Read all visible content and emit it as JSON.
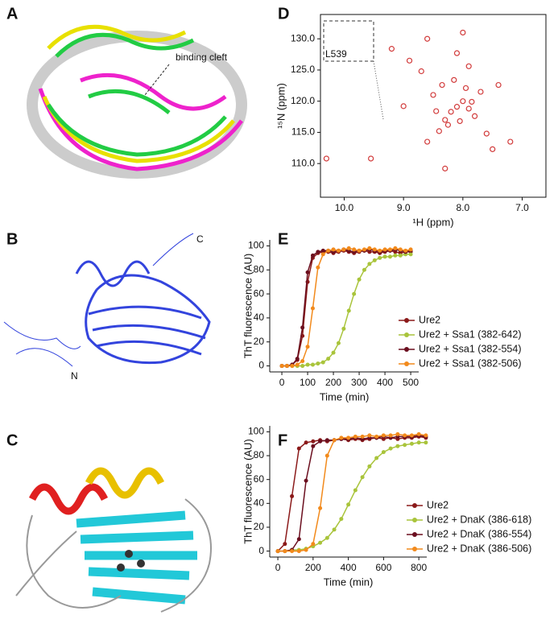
{
  "panel_labels": [
    "A",
    "B",
    "C",
    "D",
    "E",
    "F"
  ],
  "annotations": {
    "binding_cleft": "binding cleft",
    "c_terminus": "C",
    "n_terminus": "N"
  },
  "chart_data": [
    {
      "type": "scatter",
      "xlabel": "¹H (ppm)",
      "ylabel": "¹⁵N (ppm)",
      "annotation": "L539",
      "xlim": [
        10.4,
        6.6
      ],
      "ylim": [
        104.6,
        133.9
      ],
      "xticks": [
        {
          "value": 10,
          "label": "10.0"
        },
        {
          "value": 9,
          "label": "9.0"
        },
        {
          "value": 8,
          "label": "8.0"
        },
        {
          "value": 7,
          "label": "7.0"
        }
      ],
      "yticks": [
        {
          "value": 110,
          "label": "110.0"
        },
        {
          "value": 115,
          "label": "115.0"
        },
        {
          "value": 120,
          "label": "120.0"
        },
        {
          "value": 125,
          "label": "125.0"
        },
        {
          "value": 130,
          "label": "130.0"
        }
      ],
      "color": "#d23c3c",
      "x": [
        10.3,
        9.55,
        8.6,
        8.4,
        8.3,
        8.2,
        8.1,
        8.0,
        7.9,
        7.8,
        7.7,
        8.5,
        8.35,
        8.15,
        7.95,
        8.25,
        8.05,
        7.85,
        8.45,
        7.6,
        8.7,
        7.5,
        8.9,
        7.2,
        9.2,
        8.0,
        8.3,
        7.9,
        8.6,
        7.4,
        9.0,
        8.1
      ],
      "y": [
        110.8,
        110.8,
        113.5,
        115.2,
        117.0,
        118.3,
        119.1,
        120.0,
        118.8,
        117.6,
        121.5,
        121.0,
        122.6,
        123.4,
        122.1,
        116.2,
        116.8,
        119.9,
        118.4,
        114.8,
        124.8,
        112.3,
        126.5,
        113.5,
        128.4,
        131.0,
        109.2,
        125.6,
        130.0,
        122.6,
        119.2,
        127.7
      ]
    },
    {
      "type": "line",
      "xlabel": "Time (min)",
      "ylabel": "ThT fluorescence (AU)",
      "xlim": [
        -47,
        531
      ],
      "ylim": [
        -5,
        105
      ],
      "xticks": [
        0,
        100,
        200,
        300,
        400,
        500
      ],
      "yticks": [
        0,
        20,
        40,
        60,
        80,
        100
      ],
      "x": [
        0,
        20,
        40,
        60,
        80,
        100,
        120,
        140,
        160,
        180,
        200,
        220,
        240,
        260,
        280,
        300,
        320,
        340,
        360,
        380,
        400,
        420,
        440,
        460,
        480,
        500
      ],
      "series": [
        {
          "name": "Ure2",
          "color": "#8b1a1a",
          "values": [
            0,
            0,
            1,
            5,
            25,
            70,
            90,
            94,
            95,
            95,
            94,
            95,
            96,
            95,
            94,
            95,
            96,
            95,
            95,
            94,
            95,
            96,
            95,
            94,
            95,
            95
          ]
        },
        {
          "name": "Ure2 + Ssa1 (382-642)",
          "color": "#a9c43b",
          "values": [
            0,
            0,
            0,
            0,
            0,
            1,
            1,
            2,
            3,
            6,
            11,
            19,
            31,
            46,
            60,
            72,
            80,
            85,
            88,
            90,
            91,
            91,
            92,
            92,
            93,
            93
          ]
        },
        {
          "name": "Ure2 + Ssa1 (382-554)",
          "color": "#6b0f1f",
          "values": [
            0,
            0,
            1,
            6,
            32,
            78,
            92,
            95,
            96,
            96,
            95,
            96,
            97,
            96,
            95,
            96,
            96,
            97,
            96,
            95,
            96,
            96,
            97,
            96,
            95,
            96
          ]
        },
        {
          "name": "Ure2 + Ssa1 (382-506)",
          "color": "#f28a1c",
          "values": [
            0,
            0,
            0,
            1,
            4,
            16,
            48,
            82,
            93,
            96,
            97,
            96,
            97,
            98,
            97,
            96,
            97,
            98,
            97,
            96,
            97,
            97,
            98,
            97,
            96,
            97
          ]
        }
      ]
    },
    {
      "type": "line",
      "xlabel": "Time (min)",
      "ylabel": "ThT fluorescence (AU)",
      "xlim": [
        -46,
        845
      ],
      "ylim": [
        -5,
        105
      ],
      "xticks": [
        0,
        200,
        400,
        600,
        800
      ],
      "yticks": [
        0,
        20,
        40,
        60,
        80,
        100
      ],
      "x": [
        0,
        40,
        80,
        120,
        160,
        200,
        240,
        280,
        320,
        360,
        400,
        440,
        480,
        520,
        560,
        600,
        640,
        680,
        720,
        760,
        800,
        840
      ],
      "series": [
        {
          "name": "Ure2",
          "color": "#8b1a1a",
          "values": [
            0,
            6,
            46,
            86,
            91,
            92,
            93,
            92,
            93,
            94,
            93,
            94,
            93,
            94,
            95,
            94,
            95,
            94,
            95,
            95,
            96,
            95
          ]
        },
        {
          "name": "Ure2 + DnaK (386-618)",
          "color": "#a9c43b",
          "values": [
            0,
            0,
            1,
            1,
            2,
            4,
            7,
            11,
            18,
            27,
            39,
            51,
            62,
            71,
            78,
            83,
            86,
            88,
            89,
            90,
            91,
            91
          ]
        },
        {
          "name": "Ure2 + DnaK (386-554)",
          "color": "#6b0f1f",
          "values": [
            0,
            0,
            1,
            10,
            59,
            88,
            92,
            93,
            93,
            94,
            94,
            95,
            94,
            95,
            95,
            96,
            95,
            96,
            96,
            96,
            97,
            96
          ]
        },
        {
          "name": "Ure2 + DnaK (386-506)",
          "color": "#f28a1c",
          "values": [
            0,
            0,
            0,
            0,
            1,
            6,
            36,
            80,
            93,
            95,
            95,
            96,
            96,
            97,
            96,
            97,
            97,
            98,
            97,
            97,
            98,
            97
          ]
        }
      ]
    }
  ]
}
